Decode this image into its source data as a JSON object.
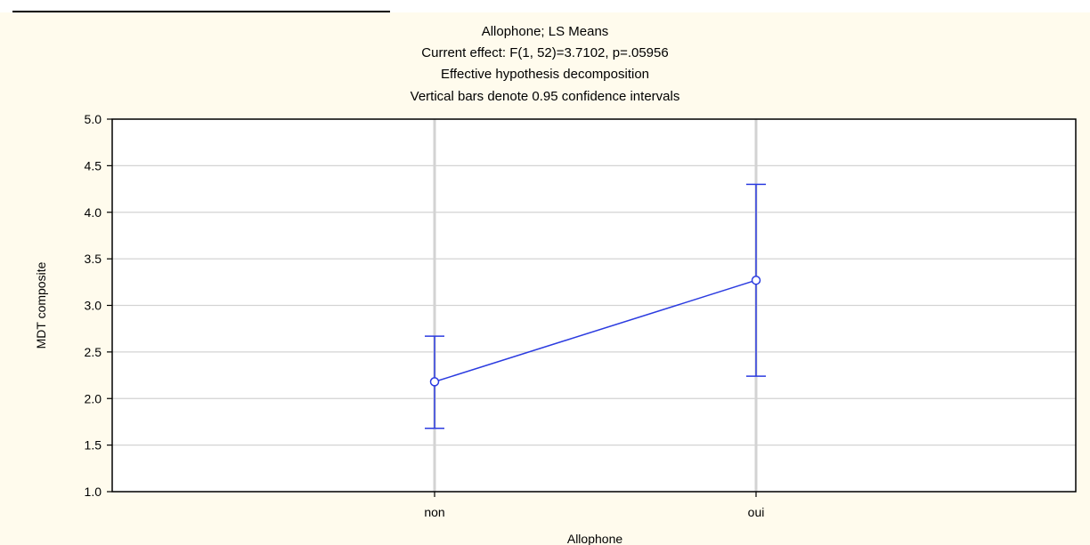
{
  "chart_data": {
    "type": "line",
    "title_lines": [
      "Allophone; LS Means",
      "Current effect: F(1, 52)=3.7102, p=.05956",
      "Effective hypothesis decomposition",
      "Vertical bars denote 0.95 confidence intervals"
    ],
    "xlabel": "Allophone",
    "ylabel": "MDT composite",
    "categories": [
      "non",
      "oui"
    ],
    "series": [
      {
        "values": [
          2.18,
          3.27
        ],
        "ci_lower": [
          1.68,
          2.24
        ],
        "ci_upper": [
          2.67,
          4.3
        ],
        "color": "#2b3be0"
      }
    ],
    "ylim": [
      1.0,
      5.0
    ],
    "yticks": [
      "1.0",
      "1.5",
      "2.0",
      "2.5",
      "3.0",
      "3.5",
      "4.0",
      "4.5",
      "5.0"
    ],
    "grid": true
  }
}
